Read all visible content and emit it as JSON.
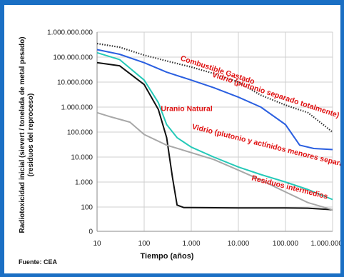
{
  "chart_data": {
    "type": "line",
    "title": "",
    "xlabel": "Tiempo (años)",
    "ylabel": "Radiotoxicidad inicial (sievert / tonelada de metal pesado) (residuos del reproceso)",
    "xscale": "log",
    "yscale": "log",
    "xlim": [
      10,
      1000000
    ],
    "ylim": [
      0,
      1000000000
    ],
    "x_ticks": [
      "10",
      "100",
      "1.000",
      "10.000",
      "100.000",
      "1.000.000"
    ],
    "y_ticks": [
      "0",
      "100",
      "1.000",
      "10.000",
      "100.000",
      "1.000.000",
      "10.000.000",
      "100.000.000",
      "1.000.000.000"
    ],
    "grid": true,
    "source": "Fuente: CEA",
    "series": [
      {
        "name": "Combustible Gastado",
        "color": "#333333",
        "style": "dotted",
        "points": [
          [
            10,
            350000000
          ],
          [
            30,
            250000000
          ],
          [
            100,
            120000000
          ],
          [
            300,
            70000000
          ],
          [
            1000,
            40000000
          ],
          [
            3000,
            22000000
          ],
          [
            10000,
            10000000
          ],
          [
            30000,
            3000000
          ],
          [
            100000,
            1200000
          ],
          [
            300000,
            600000
          ],
          [
            1000000,
            100000
          ]
        ]
      },
      {
        "name": "Vidrio (plutonio separado totalmente)",
        "color": "#2a5fe0",
        "style": "solid",
        "points": [
          [
            10,
            200000000
          ],
          [
            30,
            130000000
          ],
          [
            100,
            60000000
          ],
          [
            300,
            25000000
          ],
          [
            1000,
            12000000
          ],
          [
            3000,
            6000000
          ],
          [
            10000,
            2500000
          ],
          [
            30000,
            1000000
          ],
          [
            100000,
            200000
          ],
          [
            200000,
            30000
          ],
          [
            400000,
            22000
          ],
          [
            1000000,
            20000
          ]
        ]
      },
      {
        "name": "Uranio Natural",
        "color": "#111111",
        "style": "solid",
        "points": [
          [
            10,
            60000000
          ],
          [
            30,
            45000000
          ],
          [
            100,
            8000000
          ],
          [
            200,
            800000
          ],
          [
            300,
            60000
          ],
          [
            400,
            1500
          ],
          [
            500,
            120
          ],
          [
            700,
            90
          ],
          [
            1000,
            90
          ],
          [
            10000,
            85
          ],
          [
            100000,
            85
          ],
          [
            300000,
            80
          ],
          [
            1000000,
            60
          ]
        ]
      },
      {
        "name": "Vidrio (plutonio y actínidos menores separados)",
        "color": "#25c9b8",
        "style": "solid",
        "points": [
          [
            10,
            150000000
          ],
          [
            30,
            80000000
          ],
          [
            100,
            12000000
          ],
          [
            200,
            1500000
          ],
          [
            300,
            200000
          ],
          [
            500,
            60000
          ],
          [
            1000,
            25000
          ],
          [
            3000,
            10000
          ],
          [
            10000,
            4000
          ],
          [
            30000,
            2000
          ],
          [
            100000,
            1000
          ],
          [
            300000,
            500
          ],
          [
            1000000,
            200
          ]
        ]
      },
      {
        "name": "Residuos intermedios",
        "color": "#a8a8a8",
        "style": "solid",
        "points": [
          [
            10,
            600000
          ],
          [
            20,
            400000
          ],
          [
            50,
            250000
          ],
          [
            100,
            80000
          ],
          [
            300,
            30000
          ],
          [
            1000,
            15000
          ],
          [
            3000,
            8000
          ],
          [
            10000,
            3000
          ],
          [
            30000,
            1200
          ],
          [
            100000,
            400
          ],
          [
            300000,
            150
          ],
          [
            1000000,
            60
          ]
        ]
      }
    ],
    "annotations": [
      {
        "text": "Combustible Gastado",
        "x": 3500,
        "y": 25000000
      },
      {
        "text": "Vidrio (plutonio separado totalmente)",
        "x": 60000,
        "y": 2500000
      },
      {
        "text": "Uranio Natural",
        "x": 800,
        "y": 700000
      },
      {
        "text": "Vidrio (plutonio y actínidos menores separados)",
        "x": 60000,
        "y": 20000
      },
      {
        "text": "Residuos intermedios",
        "x": 120000,
        "y": 500
      }
    ]
  }
}
